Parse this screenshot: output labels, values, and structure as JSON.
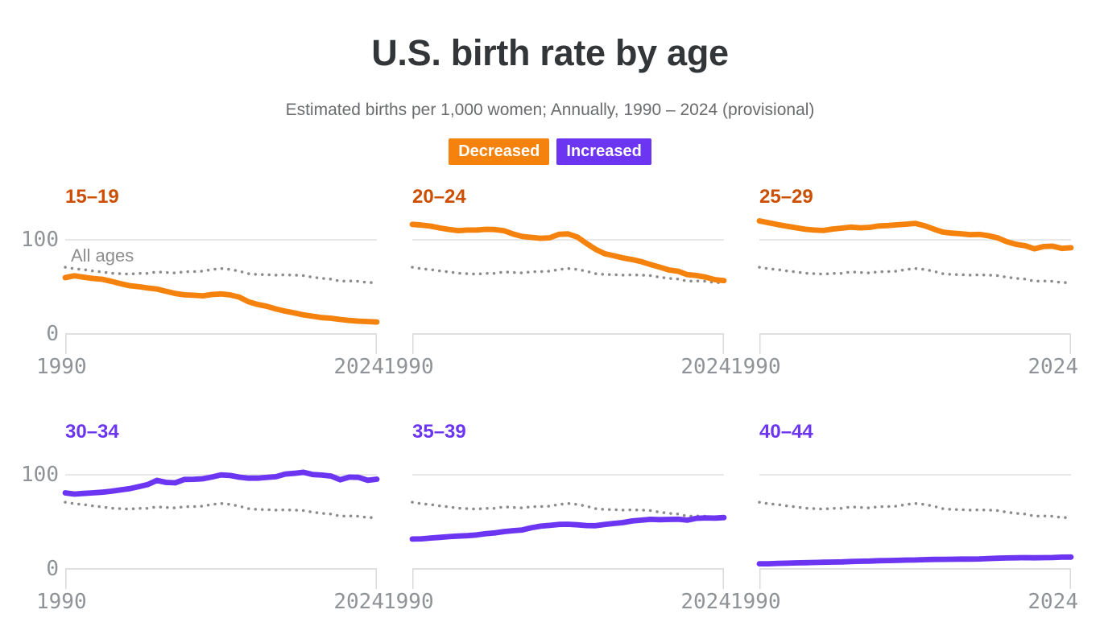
{
  "header": {
    "title": "U.S. birth rate by age",
    "subtitle": "Estimated births per 1,000 women; Annually, 1990 – 2024 (provisional)"
  },
  "legend": {
    "items": [
      {
        "label": "Decreased",
        "color": "#f5820d"
      },
      {
        "label": "Increased",
        "color": "#6b35f2"
      }
    ]
  },
  "axis": {
    "x_tick_labels": [
      "1990",
      "2024"
    ],
    "y_tick_labels": [
      "100",
      "0"
    ]
  },
  "palette": {
    "decreased_line": "#f5820d",
    "decreased_title": "#cc4e02",
    "increased_line": "#6b35f2",
    "increased_title": "#6b35f2",
    "reference_gray": "#8c8c8c"
  },
  "chart_data": [
    {
      "type": "line",
      "id": "15-19",
      "title": "15–19",
      "trend": "Decreased",
      "color": "#f5820d",
      "title_color": "#cc4e02",
      "ylim": [
        0,
        130
      ],
      "y_gridlines": [
        0,
        100
      ],
      "x_range": [
        1990,
        2024
      ],
      "x_tick_labels": [
        "1990",
        "2024"
      ],
      "y_tick_labels": [
        "100",
        "0"
      ],
      "years": [
        1990,
        1991,
        1992,
        1993,
        1994,
        1995,
        1996,
        1997,
        1998,
        1999,
        2000,
        2001,
        2002,
        2003,
        2004,
        2005,
        2006,
        2007,
        2008,
        2009,
        2010,
        2011,
        2012,
        2013,
        2014,
        2015,
        2016,
        2017,
        2018,
        2019,
        2020,
        2021,
        2022,
        2023,
        2024
      ],
      "series": [
        {
          "name": "15–19",
          "values": [
            59.9,
            61.8,
            60.3,
            59.0,
            58.2,
            56.0,
            53.5,
            51.3,
            50.3,
            48.8,
            47.7,
            45.3,
            43.0,
            41.6,
            41.1,
            40.5,
            41.9,
            42.5,
            41.5,
            39.1,
            34.2,
            31.3,
            29.4,
            26.5,
            24.2,
            22.3,
            20.3,
            18.8,
            17.4,
            16.7,
            15.4,
            14.4,
            13.6,
            13.2,
            12.7
          ]
        },
        {
          "name": "All ages",
          "style": "dotted",
          "color": "#8c8c8c",
          "values": [
            70.9,
            69.3,
            68.4,
            67.0,
            65.9,
            64.6,
            64.1,
            63.6,
            64.3,
            64.4,
            65.9,
            65.3,
            64.8,
            66.1,
            66.3,
            66.7,
            68.5,
            69.5,
            68.6,
            66.7,
            64.1,
            63.2,
            63.0,
            62.5,
            62.9,
            62.5,
            62.0,
            60.3,
            59.1,
            58.3,
            56.0,
            56.3,
            56.0,
            54.5,
            54.8
          ]
        }
      ]
    },
    {
      "type": "line",
      "id": "20-24",
      "title": "20–24",
      "trend": "Decreased",
      "color": "#f5820d",
      "title_color": "#cc4e02",
      "ylim": [
        0,
        130
      ],
      "y_gridlines": [
        0,
        100
      ],
      "x_range": [
        1990,
        2024
      ],
      "x_tick_labels": [
        "1990",
        "2024"
      ],
      "y_tick_labels": [
        "100",
        "0"
      ],
      "years": [
        1990,
        1991,
        1992,
        1993,
        1994,
        1995,
        1996,
        1997,
        1998,
        1999,
        2000,
        2001,
        2002,
        2003,
        2004,
        2005,
        2006,
        2007,
        2008,
        2009,
        2010,
        2011,
        2012,
        2013,
        2014,
        2015,
        2016,
        2017,
        2018,
        2019,
        2020,
        2021,
        2022,
        2023,
        2024
      ],
      "series": [
        {
          "name": "20–24",
          "values": [
            116.5,
            115.7,
            114.6,
            112.6,
            111.1,
            109.8,
            110.4,
            110.4,
            111.2,
            111.0,
            109.7,
            106.2,
            103.6,
            102.6,
            101.7,
            102.2,
            105.9,
            106.3,
            103.0,
            96.2,
            90.0,
            85.3,
            83.1,
            80.7,
            79.0,
            76.8,
            73.8,
            71.0,
            68.0,
            66.6,
            63.0,
            62.1,
            60.4,
            57.7,
            56.7
          ]
        },
        {
          "name": "All ages",
          "style": "dotted",
          "color": "#8c8c8c",
          "values": [
            70.9,
            69.3,
            68.4,
            67.0,
            65.9,
            64.6,
            64.1,
            63.6,
            64.3,
            64.4,
            65.9,
            65.3,
            64.8,
            66.1,
            66.3,
            66.7,
            68.5,
            69.5,
            68.6,
            66.7,
            64.1,
            63.2,
            63.0,
            62.5,
            62.9,
            62.5,
            62.0,
            60.3,
            59.1,
            58.3,
            56.0,
            56.3,
            56.0,
            54.5,
            54.8
          ]
        }
      ]
    },
    {
      "type": "line",
      "id": "25-29",
      "title": "25–29",
      "trend": "Decreased",
      "color": "#f5820d",
      "title_color": "#cc4e02",
      "ylim": [
        0,
        130
      ],
      "y_gridlines": [
        0,
        100
      ],
      "x_range": [
        1990,
        2024
      ],
      "x_tick_labels": [
        "1990",
        "2024"
      ],
      "y_tick_labels": [
        "100",
        "0"
      ],
      "years": [
        1990,
        1991,
        1992,
        1993,
        1994,
        1995,
        1996,
        1997,
        1998,
        1999,
        2000,
        2001,
        2002,
        2003,
        2004,
        2005,
        2006,
        2007,
        2008,
        2009,
        2010,
        2011,
        2012,
        2013,
        2014,
        2015,
        2016,
        2017,
        2018,
        2019,
        2020,
        2021,
        2022,
        2023,
        2024
      ],
      "series": [
        {
          "name": "25–29",
          "values": [
            120.2,
            118.2,
            116.2,
            114.5,
            112.9,
            111.3,
            110.4,
            110.0,
            111.5,
            112.5,
            113.5,
            112.8,
            113.2,
            114.8,
            115.2,
            116.0,
            116.7,
            117.5,
            115.1,
            111.5,
            108.3,
            107.2,
            106.5,
            105.5,
            105.8,
            104.3,
            102.1,
            98.0,
            95.3,
            93.7,
            90.5,
            92.9,
            93.3,
            90.9,
            91.6
          ]
        },
        {
          "name": "All ages",
          "style": "dotted",
          "color": "#8c8c8c",
          "values": [
            70.9,
            69.3,
            68.4,
            67.0,
            65.9,
            64.6,
            64.1,
            63.6,
            64.3,
            64.4,
            65.9,
            65.3,
            64.8,
            66.1,
            66.3,
            66.7,
            68.5,
            69.5,
            68.6,
            66.7,
            64.1,
            63.2,
            63.0,
            62.5,
            62.9,
            62.5,
            62.0,
            60.3,
            59.1,
            58.3,
            56.0,
            56.3,
            56.0,
            54.5,
            54.8
          ]
        }
      ]
    },
    {
      "type": "line",
      "id": "30-34",
      "title": "30–34",
      "trend": "Increased",
      "color": "#6b35f2",
      "title_color": "#6b35f2",
      "ylim": [
        0,
        130
      ],
      "y_gridlines": [
        0,
        100
      ],
      "x_range": [
        1990,
        2024
      ],
      "x_tick_labels": [
        "1990",
        "2024"
      ],
      "y_tick_labels": [
        "100",
        "0"
      ],
      "years": [
        1990,
        1991,
        1992,
        1993,
        1994,
        1995,
        1996,
        1997,
        1998,
        1999,
        2000,
        2001,
        2002,
        2003,
        2004,
        2005,
        2006,
        2007,
        2008,
        2009,
        2010,
        2011,
        2012,
        2013,
        2014,
        2015,
        2016,
        2017,
        2018,
        2019,
        2020,
        2021,
        2022,
        2023,
        2024
      ],
      "series": [
        {
          "name": "30–34",
          "values": [
            80.8,
            79.5,
            80.2,
            80.8,
            81.5,
            82.5,
            83.9,
            85.3,
            87.4,
            89.6,
            94.1,
            91.9,
            91.5,
            95.1,
            95.3,
            95.8,
            97.7,
            99.9,
            99.3,
            97.5,
            96.5,
            96.5,
            97.3,
            98.0,
            100.8,
            101.6,
            102.7,
            100.3,
            99.7,
            98.7,
            94.8,
            97.6,
            97.3,
            94.2,
            95.4
          ]
        },
        {
          "name": "All ages",
          "style": "dotted",
          "color": "#8c8c8c",
          "values": [
            70.9,
            69.3,
            68.4,
            67.0,
            65.9,
            64.6,
            64.1,
            63.6,
            64.3,
            64.4,
            65.9,
            65.3,
            64.8,
            66.1,
            66.3,
            66.7,
            68.5,
            69.5,
            68.6,
            66.7,
            64.1,
            63.2,
            63.0,
            62.5,
            62.9,
            62.5,
            62.0,
            60.3,
            59.1,
            58.3,
            56.0,
            56.3,
            56.0,
            54.5,
            54.8
          ]
        }
      ]
    },
    {
      "type": "line",
      "id": "35-39",
      "title": "35–39",
      "trend": "Increased",
      "color": "#6b35f2",
      "title_color": "#6b35f2",
      "ylim": [
        0,
        130
      ],
      "y_gridlines": [
        0,
        100
      ],
      "x_range": [
        1990,
        2024
      ],
      "x_tick_labels": [
        "1990",
        "2024"
      ],
      "y_tick_labels": [
        "100",
        "0"
      ],
      "years": [
        1990,
        1991,
        1992,
        1993,
        1994,
        1995,
        1996,
        1997,
        1998,
        1999,
        2000,
        2001,
        2002,
        2003,
        2004,
        2005,
        2006,
        2007,
        2008,
        2009,
        2010,
        2011,
        2012,
        2013,
        2014,
        2015,
        2016,
        2017,
        2018,
        2019,
        2020,
        2021,
        2022,
        2023,
        2024
      ],
      "series": [
        {
          "name": "35–39",
          "values": [
            31.7,
            32.0,
            32.8,
            33.5,
            34.3,
            34.9,
            35.3,
            36.1,
            37.4,
            38.3,
            39.7,
            40.6,
            41.4,
            43.8,
            45.4,
            46.3,
            47.3,
            47.5,
            46.9,
            46.1,
            45.9,
            47.2,
            48.3,
            49.3,
            51.0,
            51.8,
            52.7,
            52.3,
            52.6,
            52.8,
            51.8,
            53.8,
            54.2,
            54.0,
            54.6
          ]
        },
        {
          "name": "All ages",
          "style": "dotted",
          "color": "#8c8c8c",
          "values": [
            70.9,
            69.3,
            68.4,
            67.0,
            65.9,
            64.6,
            64.1,
            63.6,
            64.3,
            64.4,
            65.9,
            65.3,
            64.8,
            66.1,
            66.3,
            66.7,
            68.5,
            69.5,
            68.6,
            66.7,
            64.1,
            63.2,
            63.0,
            62.5,
            62.9,
            62.5,
            62.0,
            60.3,
            59.1,
            58.3,
            56.0,
            56.3,
            56.0,
            54.5,
            54.8
          ]
        }
      ]
    },
    {
      "type": "line",
      "id": "40-44",
      "title": "40–44",
      "trend": "Increased",
      "color": "#6b35f2",
      "title_color": "#6b35f2",
      "ylim": [
        0,
        130
      ],
      "y_gridlines": [
        0,
        100
      ],
      "x_range": [
        1990,
        2024
      ],
      "x_tick_labels": [
        "1990",
        "2024"
      ],
      "y_tick_labels": [
        "100",
        "0"
      ],
      "years": [
        1990,
        1991,
        1992,
        1993,
        1994,
        1995,
        1996,
        1997,
        1998,
        1999,
        2000,
        2001,
        2002,
        2003,
        2004,
        2005,
        2006,
        2007,
        2008,
        2009,
        2010,
        2011,
        2012,
        2013,
        2014,
        2015,
        2016,
        2017,
        2018,
        2019,
        2020,
        2021,
        2022,
        2023,
        2024
      ],
      "series": [
        {
          "name": "40–44",
          "values": [
            5.5,
            5.5,
            5.9,
            6.1,
            6.4,
            6.6,
            6.8,
            7.1,
            7.3,
            7.4,
            7.9,
            8.1,
            8.3,
            8.7,
            8.9,
            9.1,
            9.4,
            9.5,
            9.8,
            10.1,
            10.2,
            10.3,
            10.4,
            10.4,
            10.6,
            11.0,
            11.4,
            11.6,
            11.8,
            12.0,
            11.8,
            12.0,
            12.1,
            12.5,
            12.6
          ]
        },
        {
          "name": "All ages",
          "style": "dotted",
          "color": "#8c8c8c",
          "values": [
            70.9,
            69.3,
            68.4,
            67.0,
            65.9,
            64.6,
            64.1,
            63.6,
            64.3,
            64.4,
            65.9,
            65.3,
            64.8,
            66.1,
            66.3,
            66.7,
            68.5,
            69.5,
            68.6,
            66.7,
            64.1,
            63.2,
            63.0,
            62.5,
            62.9,
            62.5,
            62.0,
            60.3,
            59.1,
            58.3,
            56.0,
            56.3,
            56.0,
            54.5,
            54.8
          ]
        }
      ]
    }
  ]
}
